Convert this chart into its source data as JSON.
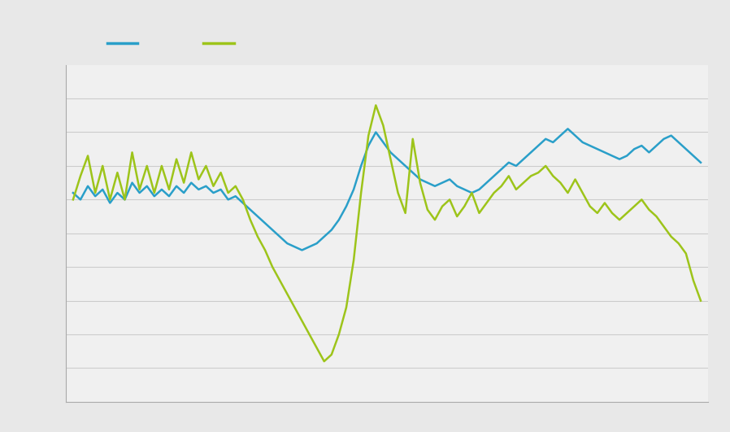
{
  "background_color": "#e8e8e8",
  "plot_bg_color": "#f0f0f0",
  "grid_color": "#cccccc",
  "line1_color": "#2a9fc9",
  "line2_color": "#9dc41a",
  "line1_label": "",
  "line2_label": "",
  "legend_line1_color": "#2a9fc9",
  "legend_line2_color": "#9dc41a",
  "spine_color": "#aaaaaa",
  "series1": [
    62,
    60,
    64,
    61,
    63,
    59,
    62,
    60,
    65,
    62,
    64,
    61,
    63,
    61,
    64,
    62,
    65,
    63,
    64,
    62,
    63,
    60,
    61,
    59,
    57,
    55,
    53,
    51,
    49,
    47,
    46,
    45,
    46,
    47,
    49,
    51,
    54,
    58,
    63,
    70,
    76,
    80,
    77,
    74,
    72,
    70,
    68,
    66,
    65,
    64,
    65,
    66,
    64,
    63,
    62,
    63,
    65,
    67,
    69,
    71,
    70,
    72,
    74,
    76,
    78,
    77,
    79,
    81,
    79,
    77,
    76,
    75,
    74,
    73,
    72,
    73,
    75,
    76,
    74,
    76,
    78,
    79,
    77,
    75,
    73,
    71
  ],
  "series2": [
    60,
    67,
    73,
    62,
    70,
    60,
    68,
    60,
    74,
    63,
    70,
    62,
    70,
    63,
    72,
    65,
    74,
    66,
    70,
    64,
    68,
    62,
    64,
    60,
    54,
    49,
    45,
    40,
    36,
    32,
    28,
    24,
    20,
    16,
    12,
    14,
    20,
    28,
    42,
    62,
    79,
    88,
    82,
    72,
    62,
    56,
    78,
    65,
    57,
    54,
    58,
    60,
    55,
    58,
    62,
    56,
    59,
    62,
    64,
    67,
    63,
    65,
    67,
    68,
    70,
    67,
    65,
    62,
    66,
    62,
    58,
    56,
    59,
    56,
    54,
    56,
    58,
    60,
    57,
    55,
    52,
    49,
    47,
    44,
    36,
    30
  ]
}
